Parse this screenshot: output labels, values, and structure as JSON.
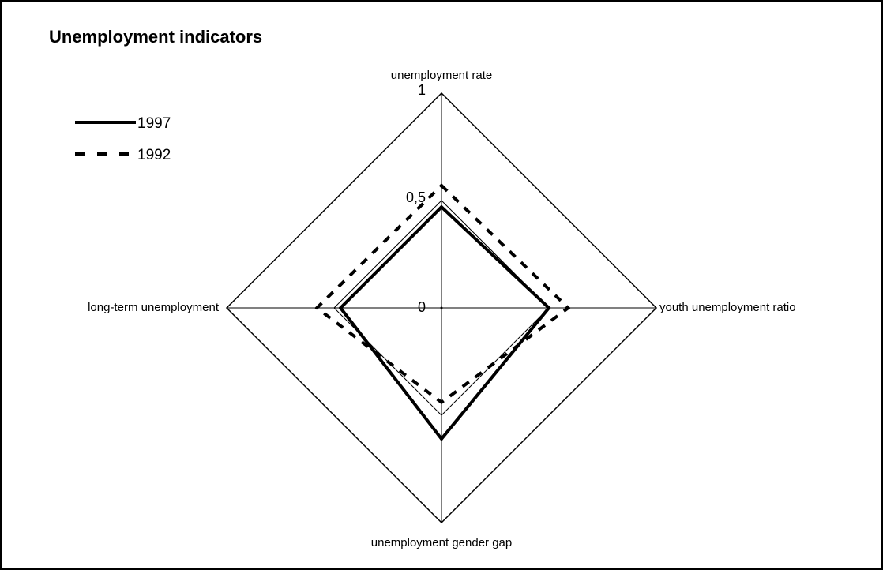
{
  "chart_data": {
    "type": "radar",
    "title": "Unemployment indicators",
    "categories": [
      "unemployment rate",
      "youth unemployment ratio",
      "unemployment gender gap",
      "long-term unemployment"
    ],
    "series": [
      {
        "name": "1997",
        "color": "#000000",
        "dash": "solid",
        "values": [
          0.47,
          0.5,
          0.61,
          0.47
        ]
      },
      {
        "name": "1992",
        "color": "#000000",
        "dash": "dashed",
        "values": [
          0.57,
          0.59,
          0.44,
          0.58
        ]
      }
    ],
    "ylim": [
      0,
      1
    ],
    "yticks": [
      0,
      {
        "value": 0.5,
        "label": "0,5"
      },
      1
    ],
    "grid": true,
    "legend": "top-left"
  }
}
